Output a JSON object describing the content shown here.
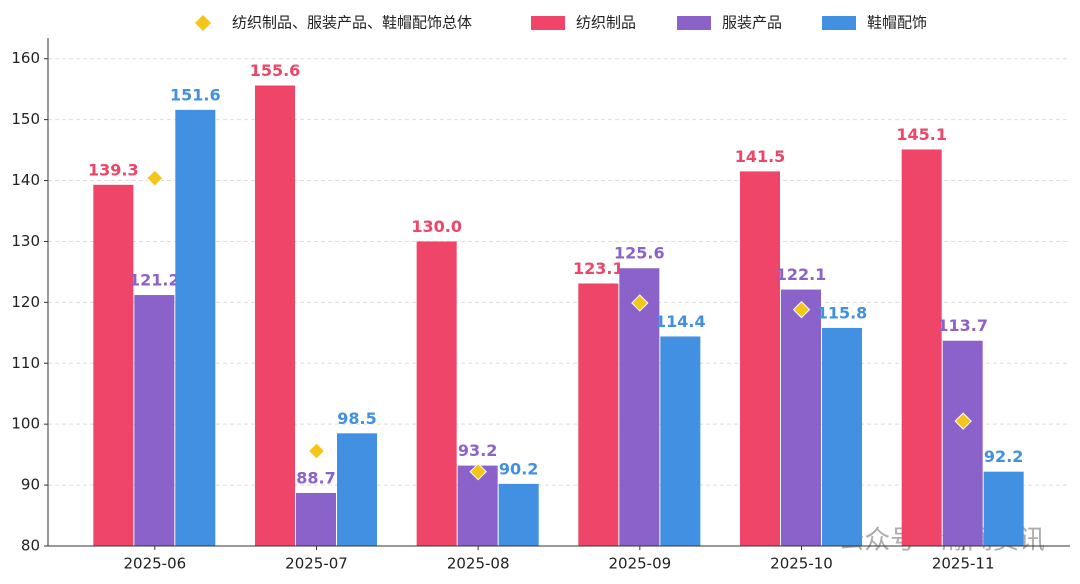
{
  "chart_data": {
    "type": "bar",
    "categories": [
      "2025-06",
      "2025-07",
      "2025-08",
      "2025-09",
      "2025-10",
      "2025-11"
    ],
    "series": [
      {
        "name": "纺织制品、服装产品、鞋帽配饰总体",
        "type": "scatter",
        "color": "#f5c518",
        "values": [
          140.4,
          95.6,
          92.2,
          119.9,
          118.8,
          100.5
        ]
      },
      {
        "name": "纺织制品",
        "type": "bar",
        "color": "#ee4568",
        "values": [
          139.3,
          155.6,
          130,
          123.1,
          141.5,
          145.1
        ],
        "value_labels": [
          "139.3",
          "155.6",
          "130.0",
          "123.1",
          "141.5",
          "145.1"
        ]
      },
      {
        "name": "服装产品",
        "type": "bar",
        "color": "#8b62c9",
        "values": [
          121.2,
          88.7,
          93.2,
          125.6,
          122.1,
          113.7
        ],
        "value_labels": [
          "121.2",
          "88.7",
          "93.2",
          "125.6",
          "122.1",
          "113.7"
        ]
      },
      {
        "name": "鞋帽配饰",
        "type": "bar",
        "color": "#4190e2",
        "values": [
          151.6,
          98.5,
          90.2,
          114.4,
          115.8,
          92.2
        ],
        "value_labels": [
          "151.6",
          "98.5",
          "90.2",
          "114.4",
          "115.8",
          "92.2"
        ]
      }
    ],
    "ylim": [
      80,
      163.4
    ],
    "yticks": [
      80,
      90,
      100,
      110,
      120,
      130,
      140,
      150,
      160
    ],
    "grid": true,
    "legend": "top",
    "watermark": "公众号 · 瀚闻资讯"
  }
}
